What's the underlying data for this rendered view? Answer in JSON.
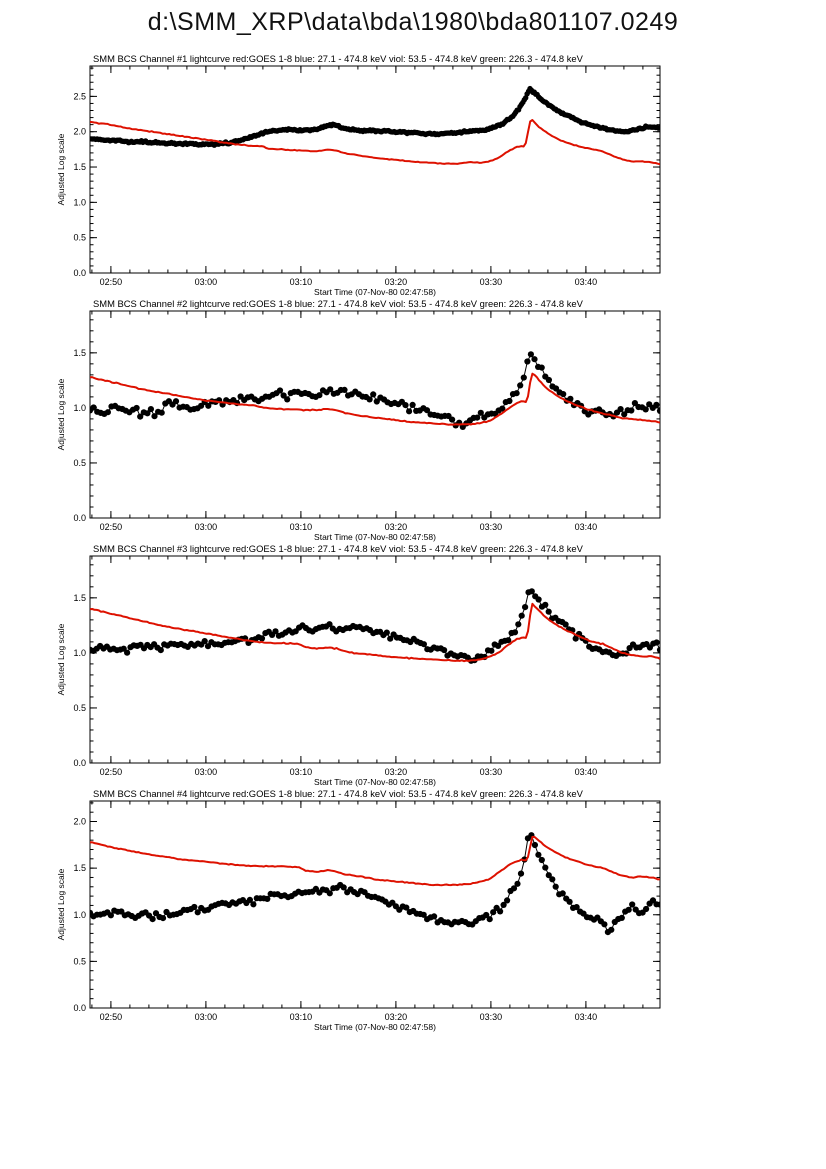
{
  "page_title": "d:\\SMM_XRP\\data\\bda\\1980\\bda801107.0249",
  "colors": {
    "goes_red": "#dd1100",
    "bcs_black": "#000000",
    "background": "#ffffff"
  },
  "x_axis": {
    "label": "Start Time (07-Nov-80 02:47:58)",
    "xlim_minutes": [
      0,
      60
    ],
    "xtick_minutes": [
      2.2,
      12.2,
      22.2,
      32.2,
      42.2,
      52.2
    ],
    "xtick_labels": [
      "02:50",
      "03:00",
      "03:10",
      "03:20",
      "03:30",
      "03:40"
    ],
    "minor_x_step": 2
  },
  "chart_data": "see charts[]",
  "charts": [
    {
      "type": "scatter-line",
      "title": "SMM BCS Channel #1 lightcurve  red:GOES 1-8  blue: 27.1 - 474.8 keV  viol: 53.5 - 474.8 keV  green: 226.3 - 474.8 keV",
      "ylabel": "Adjusted Log scale",
      "xlabel": "Start Time (07-Nov-80 02:47:58)",
      "ylim": [
        0.0,
        2.93
      ],
      "ytick_values": [
        0.0,
        0.5,
        1.0,
        1.5,
        2.0,
        2.5
      ],
      "ytick_labels": [
        "0.0",
        "0.5",
        "1.0",
        "1.5",
        "2.0",
        "2.5"
      ],
      "minor_y_step": 0.1,
      "series": [
        {
          "name": "SMM BCS Ch1",
          "role": "bcs",
          "style": "scatter",
          "n_points": 400,
          "jitter": 0.012,
          "x": [
            0,
            2,
            4,
            6,
            8,
            10,
            12,
            14,
            15.5,
            17,
            18.5,
            20,
            21,
            22,
            23,
            24,
            25,
            25.8,
            26.6,
            28,
            30,
            32,
            34,
            35.5,
            37,
            38.5,
            40,
            41.5,
            42.5,
            43.5,
            44.5,
            45.3,
            45.9,
            46.3,
            46.8,
            47.5,
            48.5,
            49.5,
            50.5,
            51.5,
            52.5,
            53.5,
            54.5,
            55.5,
            56.5,
            57.5,
            58.5,
            59.3,
            60
          ],
          "y": [
            1.9,
            1.88,
            1.86,
            1.85,
            1.84,
            1.83,
            1.82,
            1.83,
            1.86,
            1.93,
            1.99,
            2.02,
            2.03,
            2.02,
            2.02,
            2.04,
            2.09,
            2.1,
            2.05,
            2.02,
            2.01,
            2.0,
            1.99,
            1.97,
            1.97,
            1.99,
            2.01,
            2.03,
            2.06,
            2.12,
            2.22,
            2.35,
            2.5,
            2.6,
            2.55,
            2.46,
            2.36,
            2.28,
            2.21,
            2.15,
            2.1,
            2.06,
            2.03,
            2.01,
            2.0,
            2.03,
            2.06,
            2.06,
            2.05
          ]
        },
        {
          "name": "GOES 1-8",
          "role": "goes",
          "style": "line",
          "n_points": 260,
          "jitter": 0.005,
          "x": [
            0,
            2,
            4,
            6,
            8,
            10,
            12,
            14,
            15.5,
            17,
            18.3,
            18.7,
            20,
            21.5,
            23,
            24,
            25,
            26,
            27,
            28.5,
            30,
            31.5,
            33,
            34.5,
            36,
            37.5,
            39,
            40,
            41,
            42,
            43,
            44,
            44.8,
            45.4,
            45.8,
            46.4,
            47,
            47.8,
            48.6,
            49.5,
            50.5,
            51.5,
            52.5,
            53.3,
            54,
            55,
            56,
            57,
            58,
            59,
            60
          ],
          "y": [
            2.14,
            2.1,
            2.05,
            2.01,
            1.97,
            1.93,
            1.89,
            1.85,
            1.82,
            1.8,
            1.79,
            1.76,
            1.75,
            1.74,
            1.73,
            1.72,
            1.75,
            1.73,
            1.69,
            1.66,
            1.63,
            1.61,
            1.59,
            1.57,
            1.56,
            1.55,
            1.55,
            1.57,
            1.56,
            1.58,
            1.63,
            1.72,
            1.78,
            1.8,
            1.79,
            2.19,
            2.1,
            2.01,
            1.94,
            1.88,
            1.83,
            1.79,
            1.76,
            1.74,
            1.72,
            1.66,
            1.61,
            1.58,
            1.58,
            1.57,
            1.54
          ]
        }
      ]
    },
    {
      "type": "scatter-line",
      "title": "SMM BCS Channel #2 lightcurve  red:GOES 1-8  blue: 27.1 - 474.8 keV  viol: 53.5 - 474.8 keV  green: 226.3 - 474.8 keV",
      "ylabel": "Adjusted Log scale",
      "xlabel": "Start Time (07-Nov-80 02:47:58)",
      "ylim": [
        0.0,
        1.88
      ],
      "ytick_values": [
        0.0,
        0.5,
        1.0,
        1.5
      ],
      "ytick_labels": [
        "0.0",
        "0.5",
        "1.0",
        "1.5"
      ],
      "minor_y_step": 0.1,
      "series": [
        {
          "name": "SMM BCS Ch2",
          "role": "bcs",
          "style": "scatter",
          "n_points": 160,
          "jitter": 0.035,
          "x": [
            0,
            1.5,
            3,
            4.5,
            6,
            7,
            8,
            9.5,
            11,
            12.5,
            14,
            15.5,
            16.5,
            18,
            19.5,
            21,
            22.5,
            24,
            25.5,
            27,
            28.5,
            30,
            31.5,
            33,
            34.5,
            36,
            37.5,
            38.8,
            40,
            41.2,
            42.3,
            43.4,
            44.3,
            45.2,
            45.8,
            46.3,
            46.9,
            47.6,
            48.5,
            49.5,
            50.5,
            51.5,
            52.5,
            53.5,
            54.5,
            55.5,
            56.5,
            57.5,
            58.5,
            59.3,
            60
          ],
          "y": [
            0.98,
            0.96,
            1.0,
            0.96,
            0.98,
            0.93,
            1.0,
            1.02,
            0.99,
            1.04,
            1.06,
            1.05,
            1.09,
            1.08,
            1.12,
            1.11,
            1.14,
            1.13,
            1.16,
            1.13,
            1.12,
            1.08,
            1.05,
            1.02,
            0.99,
            0.95,
            0.91,
            0.86,
            0.88,
            0.92,
            0.96,
            1.01,
            1.08,
            1.2,
            1.32,
            1.5,
            1.44,
            1.34,
            1.22,
            1.13,
            1.06,
            1.01,
            0.98,
            0.95,
            0.93,
            0.96,
            0.99,
            1.02,
            1.01,
            0.99,
            1.0
          ]
        },
        {
          "name": "GOES 1-8",
          "role": "goes",
          "style": "line",
          "n_points": 260,
          "jitter": 0.004,
          "x": [
            0,
            2,
            4,
            6,
            8,
            10,
            12,
            14,
            16,
            17.5,
            18.2,
            19.5,
            21,
            22.5,
            24,
            25,
            26,
            27,
            28.5,
            30,
            32,
            34,
            36,
            38,
            40,
            41,
            42,
            43,
            44,
            44.8,
            45.5,
            46,
            46.5,
            47.2,
            48,
            49,
            50,
            51,
            52,
            53,
            54,
            55,
            56,
            57,
            58,
            59,
            60
          ],
          "y": [
            1.28,
            1.24,
            1.2,
            1.16,
            1.13,
            1.1,
            1.07,
            1.05,
            1.03,
            1.02,
            1.0,
            0.99,
            0.99,
            0.98,
            0.98,
            0.99,
            0.98,
            0.95,
            0.93,
            0.91,
            0.89,
            0.87,
            0.86,
            0.85,
            0.85,
            0.86,
            0.88,
            0.93,
            0.99,
            1.04,
            1.06,
            1.05,
            1.32,
            1.26,
            1.18,
            1.12,
            1.07,
            1.03,
            1.0,
            0.97,
            0.95,
            0.93,
            0.91,
            0.9,
            0.89,
            0.88,
            0.87
          ]
        }
      ]
    },
    {
      "type": "scatter-line",
      "title": "SMM BCS Channel #3 lightcurve  red:GOES 1-8  blue: 27.1 - 474.8 keV  viol: 53.5 - 474.8 keV  green: 226.3 - 474.8 keV",
      "ylabel": "Adjusted Log scale",
      "xlabel": "Start Time (07-Nov-80 02:47:58)",
      "ylim": [
        0.0,
        1.88
      ],
      "ytick_values": [
        0.0,
        0.5,
        1.0,
        1.5
      ],
      "ytick_labels": [
        "0.0",
        "0.5",
        "1.0",
        "1.5"
      ],
      "minor_y_step": 0.1,
      "series": [
        {
          "name": "SMM BCS Ch3",
          "role": "bcs",
          "style": "scatter",
          "n_points": 170,
          "jitter": 0.028,
          "x": [
            0,
            1.5,
            3,
            4.5,
            6,
            7.5,
            9,
            10.5,
            12,
            13.5,
            15,
            16.5,
            18,
            19.5,
            21,
            22.5,
            24,
            25.5,
            27,
            28.5,
            30,
            31.5,
            33,
            34.5,
            36,
            37.5,
            39,
            40,
            41,
            42,
            43,
            44,
            45,
            45.7,
            46.3,
            46.9,
            47.7,
            48.6,
            49.5,
            50.5,
            51.5,
            52.5,
            53.5,
            54.5,
            55.5,
            56.5,
            57.5,
            58.5,
            59.3,
            60
          ],
          "y": [
            1.03,
            1.06,
            1.02,
            1.05,
            1.07,
            1.05,
            1.08,
            1.07,
            1.09,
            1.08,
            1.1,
            1.11,
            1.15,
            1.18,
            1.19,
            1.21,
            1.22,
            1.23,
            1.22,
            1.23,
            1.19,
            1.16,
            1.12,
            1.08,
            1.04,
            1.01,
            0.97,
            0.95,
            0.98,
            1.02,
            1.07,
            1.13,
            1.24,
            1.38,
            1.6,
            1.52,
            1.43,
            1.34,
            1.27,
            1.21,
            1.14,
            1.08,
            1.03,
            1.0,
            0.98,
            1.02,
            1.05,
            1.07,
            1.06,
            1.05
          ]
        },
        {
          "name": "GOES 1-8",
          "role": "goes",
          "style": "line",
          "n_points": 260,
          "jitter": 0.004,
          "x": [
            0,
            2,
            4,
            6,
            8,
            10,
            12,
            14,
            16,
            17.5,
            19,
            20.5,
            22,
            22.8,
            24,
            25,
            26,
            27,
            28.5,
            30,
            32,
            34,
            36,
            38,
            40,
            41,
            42,
            43,
            44,
            44.8,
            45.5,
            46,
            46.5,
            47.2,
            48,
            49,
            50,
            51,
            52,
            53,
            54,
            55,
            56,
            57,
            58,
            59,
            60
          ],
          "y": [
            1.4,
            1.36,
            1.32,
            1.28,
            1.24,
            1.21,
            1.18,
            1.15,
            1.12,
            1.1,
            1.09,
            1.09,
            1.08,
            1.05,
            1.04,
            1.05,
            1.04,
            1.01,
            0.99,
            0.98,
            0.96,
            0.95,
            0.94,
            0.93,
            0.93,
            0.94,
            0.96,
            1.0,
            1.07,
            1.12,
            1.14,
            1.13,
            1.45,
            1.39,
            1.32,
            1.26,
            1.21,
            1.17,
            1.13,
            1.1,
            1.08,
            1.04,
            1.0,
            0.98,
            0.97,
            0.97,
            0.95
          ]
        }
      ]
    },
    {
      "type": "scatter-line",
      "title": "SMM BCS Channel #4 lightcurve  red:GOES 1-8  blue: 27.1 - 474.8 keV  viol: 53.5 - 474.8 keV  green: 226.3 - 474.8 keV",
      "ylabel": "Adjusted Log scale",
      "xlabel": "Start Time (07-Nov-80 02:47:58)",
      "ylim": [
        0.0,
        2.22
      ],
      "ytick_values": [
        0.0,
        0.5,
        1.0,
        1.5,
        2.0
      ],
      "ytick_labels": [
        "0.0",
        "0.5",
        "1.0",
        "1.5",
        "2.0"
      ],
      "minor_y_step": 0.1,
      "series": [
        {
          "name": "SMM BCS Ch4",
          "role": "bcs",
          "style": "scatter",
          "n_points": 165,
          "jitter": 0.032,
          "x": [
            0,
            1.5,
            3,
            4.5,
            6,
            7.5,
            9,
            10.5,
            12,
            13.5,
            15,
            16.5,
            18,
            19.5,
            21,
            22.5,
            24,
            25.5,
            26.5,
            27.5,
            29,
            30.5,
            32,
            33.5,
            35,
            36.5,
            38,
            39.5,
            41,
            42.3,
            43.3,
            44.2,
            45,
            45.6,
            46.2,
            46.8,
            47.4,
            48.1,
            48.9,
            49.8,
            50.8,
            51.8,
            52.8,
            53.8,
            54.6,
            55.4,
            56.2,
            57,
            57.8,
            58.6,
            59.3,
            60
          ],
          "y": [
            1.02,
            1.0,
            1.03,
            0.99,
            1.02,
            0.98,
            1.02,
            1.06,
            1.05,
            1.1,
            1.12,
            1.13,
            1.17,
            1.2,
            1.22,
            1.23,
            1.24,
            1.27,
            1.29,
            1.27,
            1.22,
            1.16,
            1.1,
            1.05,
            0.99,
            0.95,
            0.93,
            0.91,
            0.95,
            1.0,
            1.08,
            1.2,
            1.33,
            1.5,
            1.88,
            1.78,
            1.62,
            1.46,
            1.32,
            1.2,
            1.1,
            1.02,
            0.97,
            0.94,
            0.82,
            0.95,
            0.99,
            1.09,
            1.03,
            1.08,
            1.11,
            1.12
          ]
        },
        {
          "name": "GOES 1-8",
          "role": "goes",
          "style": "line",
          "n_points": 260,
          "jitter": 0.004,
          "x": [
            0,
            2,
            4,
            6,
            8,
            10,
            12,
            14,
            16,
            18,
            20,
            22,
            22.8,
            24,
            25,
            26,
            27,
            28.5,
            30,
            32,
            34,
            36,
            38,
            40,
            41,
            42,
            43,
            44,
            44.8,
            45.5,
            46,
            46.6,
            47.2,
            48,
            49,
            50,
            51,
            52,
            53,
            54,
            55,
            56,
            57,
            58,
            59,
            60
          ],
          "y": [
            1.78,
            1.73,
            1.69,
            1.65,
            1.62,
            1.59,
            1.57,
            1.55,
            1.53,
            1.52,
            1.52,
            1.51,
            1.47,
            1.46,
            1.48,
            1.46,
            1.43,
            1.41,
            1.38,
            1.36,
            1.34,
            1.32,
            1.32,
            1.33,
            1.35,
            1.38,
            1.45,
            1.53,
            1.57,
            1.59,
            1.58,
            1.85,
            1.8,
            1.73,
            1.67,
            1.62,
            1.58,
            1.55,
            1.52,
            1.5,
            1.46,
            1.42,
            1.4,
            1.41,
            1.4,
            1.38
          ]
        }
      ]
    }
  ]
}
